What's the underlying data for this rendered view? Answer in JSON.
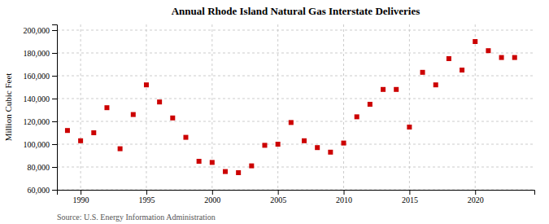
{
  "chart_data": {
    "type": "scatter",
    "title": "Annual Rhode Island Natural Gas Interstate Deliveries",
    "ylabel": "Million Cubic Feet",
    "source": "Source: U.S. Energy Information Administration",
    "color": "#cc0000",
    "marker": "square",
    "grid": true,
    "x": [
      1989,
      1990,
      1991,
      1992,
      1993,
      1994,
      1995,
      1996,
      1997,
      1998,
      1999,
      2000,
      2001,
      2002,
      2003,
      2004,
      2005,
      2006,
      2007,
      2008,
      2009,
      2010,
      2011,
      2012,
      2013,
      2014,
      2015,
      2016,
      2017,
      2018,
      2019,
      2020,
      2021,
      2022,
      2023
    ],
    "values": [
      112000,
      103000,
      110000,
      132000,
      96000,
      126000,
      152000,
      137000,
      123000,
      106000,
      85000,
      84000,
      76000,
      75000,
      81000,
      99000,
      100000,
      119000,
      103000,
      97000,
      93000,
      101000,
      124000,
      135000,
      148000,
      148000,
      115000,
      163000,
      152000,
      175000,
      165000,
      190000,
      182000,
      176000,
      176000
    ],
    "xlim": [
      1988.2,
      2024.5
    ],
    "xticks": [
      1990,
      1995,
      2000,
      2005,
      2010,
      2015,
      2020
    ],
    "ylim": [
      60000,
      205000
    ],
    "yticks": [
      {
        "value": 60000,
        "label": "60,000"
      },
      {
        "value": 80000,
        "label": "80,000"
      },
      {
        "value": 100000,
        "label": "100,000"
      },
      {
        "value": 120000,
        "label": "120,000"
      },
      {
        "value": 140000,
        "label": "140,000"
      },
      {
        "value": 160000,
        "label": "160,000"
      },
      {
        "value": 180000,
        "label": "180,000"
      },
      {
        "value": 200000,
        "label": "200,000"
      }
    ]
  }
}
